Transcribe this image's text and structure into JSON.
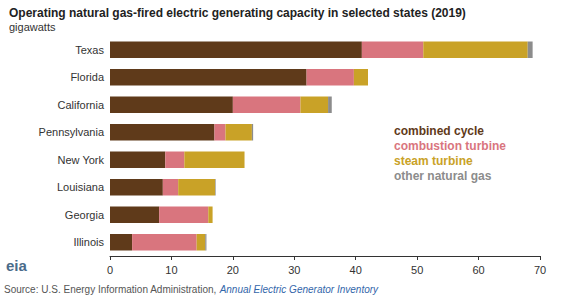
{
  "chart_data": {
    "type": "bar",
    "orientation": "horizontal",
    "stacked": true,
    "title": "Operating natural gas-fired electric generating capacity in selected states (2019)",
    "subtitle": "gigawatts",
    "source": "Source: U.S. Energy Information Administration, Annual Electric Generator Inventory",
    "logo": "eia",
    "categories": [
      "Texas",
      "Florida",
      "California",
      "Pennsylvania",
      "New York",
      "Louisiana",
      "Georgia",
      "Illinois"
    ],
    "series": [
      {
        "name": "combined cycle",
        "color": "#5f3a1a",
        "values": [
          41,
          32,
          20,
          17,
          9,
          8.6,
          8,
          3.6
        ]
      },
      {
        "name": "combustion turbine",
        "color": "#d9757e",
        "values": [
          10,
          7.7,
          11,
          1.8,
          3.1,
          2.5,
          8,
          10.5
        ]
      },
      {
        "name": "steam turbine",
        "color": "#c9a227",
        "values": [
          17,
          2.3,
          4.5,
          4.3,
          9.8,
          6,
          0.7,
          1.4
        ]
      },
      {
        "name": "other natural gas",
        "color": "#8c8c8c",
        "values": [
          0.8,
          0,
          0.6,
          0.2,
          0,
          0.1,
          0,
          0.2
        ]
      }
    ],
    "xlim": [
      0,
      70
    ],
    "xticks": [
      0,
      10,
      20,
      30,
      40,
      50,
      60,
      70
    ],
    "grid": false,
    "legend": "right"
  }
}
